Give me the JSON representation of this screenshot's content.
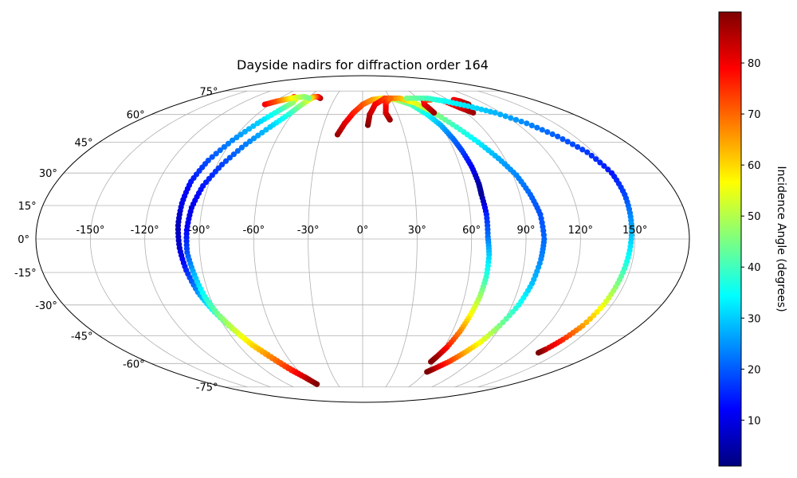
{
  "chart_data": {
    "type": "scatter",
    "projection": "mollweide",
    "title": "Dayside nadirs for diffraction order 164",
    "grid": true,
    "lon_ticks": [
      "-150°",
      "-120°",
      "-90°",
      "-60°",
      "-30°",
      "0°",
      "30°",
      "60°",
      "90°",
      "120°",
      "150°"
    ],
    "lat_ticks": [
      "75°",
      "60°",
      "45°",
      "30°",
      "15°",
      "0°",
      "-15°",
      "-30°",
      "-45°",
      "-60°",
      "-75°"
    ],
    "colorbar": {
      "label": "Incidence Angle (degrees)",
      "colormap": "jet",
      "range": [
        1,
        90
      ],
      "ticks": [
        "10",
        "20",
        "30",
        "40",
        "50",
        "60",
        "70",
        "80"
      ]
    },
    "series": [
      {
        "points": [
          [
            -77,
            71,
            75
          ],
          [
            -72,
            70,
            66
          ],
          [
            -70,
            67,
            48
          ],
          [
            -75,
            62,
            38
          ],
          [
            -82,
            55,
            30
          ],
          [
            -90,
            46,
            24
          ],
          [
            -97,
            36,
            19
          ],
          [
            -101,
            26,
            14
          ],
          [
            -102,
            16,
            10
          ],
          [
            -102,
            6,
            6
          ],
          [
            -101,
            -4,
            8
          ],
          [
            -99,
            -14,
            15
          ],
          [
            -96,
            -24,
            25
          ],
          [
            -92,
            -32,
            35
          ],
          [
            -87,
            -40,
            45
          ],
          [
            -81,
            -48,
            55
          ],
          [
            -74,
            -55,
            65
          ],
          [
            -67,
            -62,
            74
          ],
          [
            -60,
            -68,
            83
          ],
          [
            -58,
            -70,
            90
          ]
        ]
      },
      {
        "points": [
          [
            -46,
            70,
            88
          ],
          [
            -50,
            71,
            80
          ],
          [
            -54,
            71,
            70
          ],
          [
            -56,
            70,
            60
          ],
          [
            -59,
            66,
            48
          ],
          [
            -63,
            60,
            38
          ],
          [
            -70,
            53,
            30
          ],
          [
            -79,
            44,
            23
          ],
          [
            -87,
            34,
            18
          ],
          [
            -93,
            24,
            14
          ],
          [
            -96,
            14,
            10
          ],
          [
            -97,
            4,
            12
          ],
          [
            -97,
            -6,
            19
          ],
          [
            -95,
            -16,
            28
          ],
          [
            -93,
            -26,
            36
          ],
          [
            -90,
            -34,
            44
          ],
          [
            -85,
            -42,
            52
          ],
          [
            -80,
            -50,
            60
          ],
          [
            -73,
            -57,
            68
          ],
          [
            -66,
            -64,
            76
          ],
          [
            -59,
            -69,
            84
          ],
          [
            -55,
            -73,
            90
          ]
        ]
      },
      {
        "points": [
          [
            -18,
            49,
            88
          ],
          [
            -14,
            55,
            82
          ],
          [
            -8,
            61,
            77
          ],
          [
            0,
            66,
            72
          ],
          [
            10,
            69,
            66
          ],
          [
            22,
            70,
            58
          ],
          [
            36,
            69,
            50
          ],
          [
            47,
            66,
            42
          ],
          [
            55,
            60,
            35
          ],
          [
            60,
            54,
            28
          ],
          [
            63,
            47,
            22
          ],
          [
            65,
            41,
            18
          ],
          [
            67,
            33,
            12
          ],
          [
            68,
            25,
            5
          ],
          [
            68,
            20,
            3
          ],
          [
            69,
            11,
            15
          ],
          [
            69,
            1,
            22
          ],
          [
            70,
            -7,
            30
          ],
          [
            70,
            -17,
            38
          ],
          [
            69,
            -26,
            48
          ],
          [
            67,
            -35,
            57
          ],
          [
            65,
            -43,
            67
          ],
          [
            62,
            -51,
            77
          ],
          [
            59,
            -56,
            86
          ],
          [
            57,
            -59,
            90
          ]
        ]
      },
      {
        "points": [
          [
            4,
            54,
            90
          ],
          [
            6,
            60,
            85
          ],
          [
            12,
            66,
            80
          ],
          [
            24,
            70,
            74
          ],
          [
            40,
            70,
            64
          ],
          [
            52,
            67,
            55
          ],
          [
            62,
            61,
            47
          ],
          [
            71,
            53,
            39
          ],
          [
            79,
            45,
            33
          ],
          [
            86,
            37,
            27
          ],
          [
            92,
            29,
            24
          ],
          [
            96,
            20,
            21
          ],
          [
            99,
            11,
            19
          ],
          [
            100,
            0,
            21
          ],
          [
            99,
            -9,
            24
          ],
          [
            97,
            -20,
            29
          ],
          [
            94,
            -30,
            36
          ],
          [
            89,
            -40,
            45
          ],
          [
            84,
            -48,
            55
          ],
          [
            78,
            -54,
            64
          ],
          [
            72,
            -59,
            74
          ],
          [
            65,
            -63,
            84
          ],
          [
            61,
            -65,
            90
          ]
        ]
      },
      {
        "points": [
          [
            -95,
            66,
            80
          ],
          [
            -88,
            68,
            72
          ],
          [
            -78,
            70,
            58
          ],
          [
            -66,
            71,
            48
          ],
          [
            -58,
            70,
            45
          ]
        ]
      },
      {
        "points": [
          [
            22,
            57,
            88
          ],
          [
            20,
            61,
            83
          ],
          [
            23,
            67,
            78
          ],
          [
            30,
            70,
            70
          ]
        ]
      },
      {
        "points": [
          [
            62,
            61,
            88
          ],
          [
            60,
            66,
            82
          ],
          [
            64,
            69,
            78
          ],
          [
            72,
            69,
            72
          ]
        ]
      },
      {
        "points": [
          [
            96,
            61,
            88
          ],
          [
            90,
            64,
            82
          ],
          [
            84,
            68,
            78
          ]
        ]
      },
      {
        "points": [
          [
            103,
            66,
            88
          ],
          [
            100,
            68,
            84
          ],
          [
            96,
            69,
            80
          ]
        ]
      },
      {
        "points": [
          [
            48,
            70,
            45
          ],
          [
            70,
            70,
            40
          ],
          [
            85,
            68,
            35
          ],
          [
            100,
            65,
            32
          ],
          [
            115,
            61,
            28
          ],
          [
            128,
            55,
            24
          ],
          [
            138,
            48,
            20
          ],
          [
            146,
            40,
            17
          ],
          [
            150,
            30,
            14
          ],
          [
            150,
            20,
            18
          ],
          [
            149,
            10,
            24
          ],
          [
            148,
            0,
            30
          ],
          [
            147,
            -10,
            36
          ],
          [
            146,
            -20,
            45
          ],
          [
            145,
            -30,
            55
          ],
          [
            143,
            -40,
            65
          ],
          [
            140,
            -47,
            75
          ],
          [
            137,
            -52,
            83
          ],
          [
            135,
            -54,
            90
          ]
        ]
      }
    ]
  }
}
